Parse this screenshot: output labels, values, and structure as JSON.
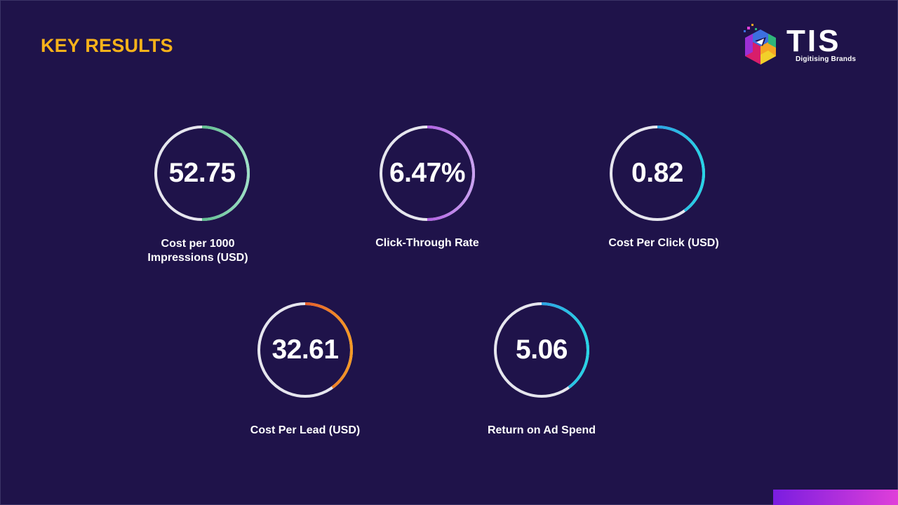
{
  "slide": {
    "title": "KEY RESULTS"
  },
  "logo": {
    "wordmark": "TIS",
    "tagline": "Digitising Brands"
  },
  "kpis": [
    {
      "value": "52.75",
      "label_lines": [
        "Cost per 1000",
        "Impressions (USD)"
      ],
      "ring_gradient": [
        "#1f9a57",
        "#9ee0c6"
      ],
      "ring_fill": 0.5
    },
    {
      "value": "6.47%",
      "label_lines": [
        "Click-Through Rate"
      ],
      "ring_gradient": [
        "#9a1fd6",
        "#c9a1f0"
      ],
      "ring_fill": 0.5
    },
    {
      "value": "0.82",
      "label_lines": [
        "Cost Per Click (USD)"
      ],
      "ring_gradient": [
        "#2f6fe0",
        "#28d4e6"
      ],
      "ring_fill": 0.4
    },
    {
      "value": "32.61",
      "label_lines": [
        "Cost Per Lead (USD)"
      ],
      "ring_gradient": [
        "#d82030",
        "#f59a25"
      ],
      "ring_fill": 0.4
    },
    {
      "value": "5.06",
      "label_lines": [
        "Return on Ad Spend"
      ],
      "ring_gradient": [
        "#2f6fe0",
        "#28d4e6"
      ],
      "ring_fill": 0.4
    }
  ],
  "colors": {
    "background": "#1f134a",
    "title": "#f7b21a",
    "ring_track": "#e6e6ee",
    "corner_bar": [
      "#7a1de0",
      "#e03fd9"
    ]
  }
}
